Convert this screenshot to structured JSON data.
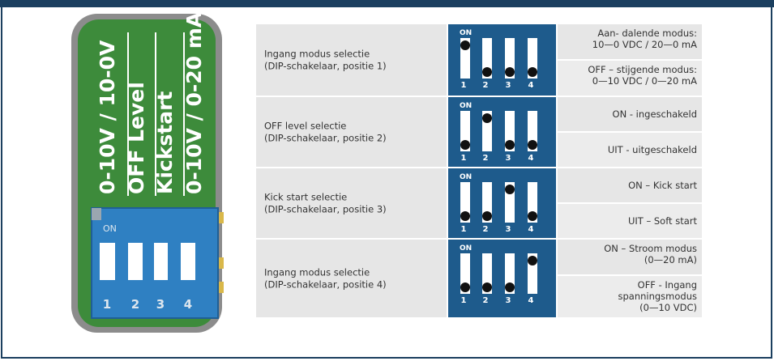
{
  "pcb": {
    "labels": [
      "0-10V / 10-0V",
      "OFF Level",
      "Kickstart",
      "0-10V / 0-20 mA"
    ]
  },
  "switch_labels": {
    "on": "ON",
    "numbers": [
      "1",
      "2",
      "3",
      "4"
    ]
  },
  "rows": [
    {
      "label": [
        "Ingang modus selectie",
        "(DIP-schakelaar, positie 1)"
      ],
      "options": [
        [
          "Aan- dalende modus:",
          "10—0 VDC / 20—0 mA"
        ],
        [
          "OFF – stijgende modus:",
          "0—10 VDC / 0—20 mA"
        ]
      ]
    },
    {
      "label": [
        "OFF level selectie",
        "(DIP-schakelaar, positie 2)"
      ],
      "options": [
        [
          "ON - ingeschakeld"
        ],
        [
          "UIT - uitgeschakeld"
        ]
      ]
    },
    {
      "label": [
        "Kick start selectie",
        "(DIP-schakelaar, positie 3)"
      ],
      "options": [
        [
          "ON – Kick start"
        ],
        [
          "UIT – Soft start"
        ]
      ]
    },
    {
      "label": [
        "Ingang modus selectie",
        "(DIP-schakelaar, positie 4)"
      ],
      "options": [
        [
          "ON – Stroom modus",
          "(0—20 mA)"
        ],
        [
          "OFF - Ingang",
          "spanningsmodus",
          "(0—10 VDC)"
        ]
      ]
    }
  ]
}
